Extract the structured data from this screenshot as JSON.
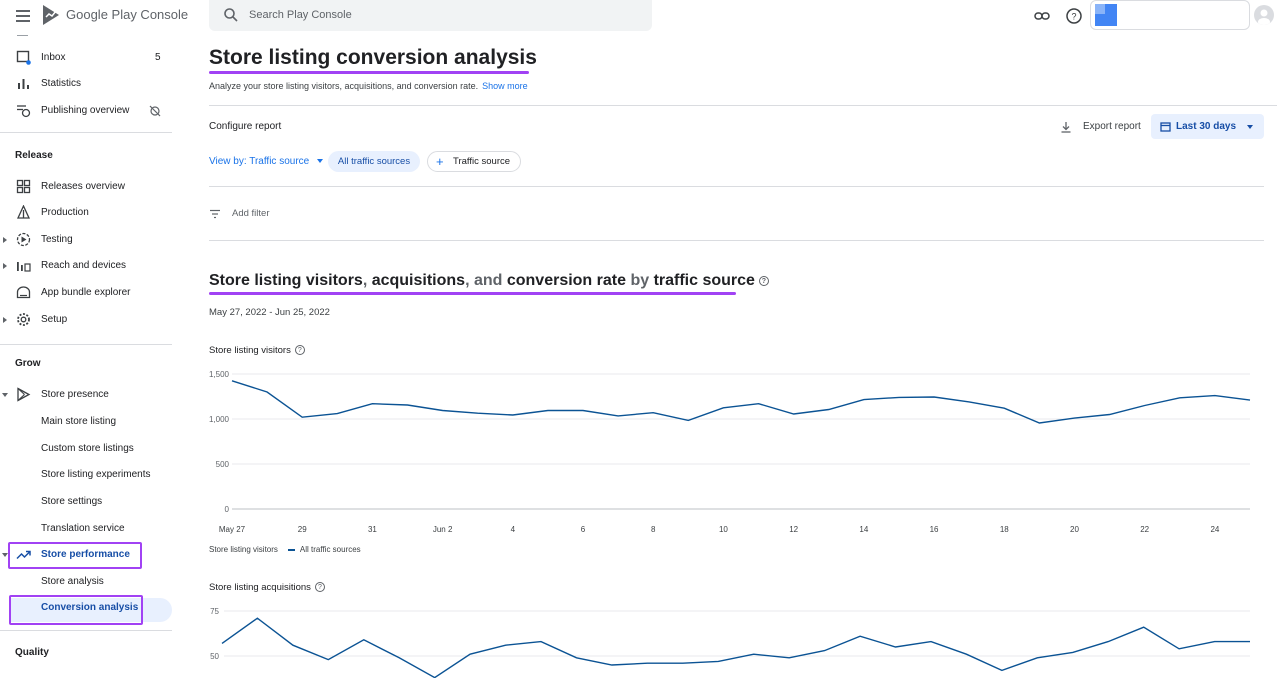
{
  "header": {
    "brand": "Google Play Console",
    "search_placeholder": "Search Play Console"
  },
  "sidebar": {
    "top_items": [
      {
        "label": "Inbox",
        "badge": "5",
        "icon": "inbox-icon"
      },
      {
        "label": "Statistics",
        "icon": "bar-chart-icon"
      },
      {
        "label": "Publishing overview",
        "icon": "publishing-icon"
      }
    ],
    "release_title": "Release",
    "release_items": [
      {
        "label": "Releases overview",
        "icon": "releases-grid-icon"
      },
      {
        "label": "Production",
        "icon": "production-icon"
      },
      {
        "label": "Testing",
        "icon": "testing-icon"
      },
      {
        "label": "Reach and devices",
        "icon": "reach-icon"
      },
      {
        "label": "App bundle explorer",
        "icon": "app-bundle-icon"
      },
      {
        "label": "Setup",
        "icon": "gear-icon"
      }
    ],
    "grow_title": "Grow",
    "store_presence": "Store presence",
    "store_presence_items": [
      "Main store listing",
      "Custom store listings",
      "Store listing experiments",
      "Store settings",
      "Translation service"
    ],
    "store_performance": "Store performance",
    "store_performance_items": [
      "Store analysis",
      "Conversion analysis"
    ],
    "quality_title": "Quality"
  },
  "main": {
    "title": "Store listing conversion analysis",
    "subtitle": "Analyze your store listing visitors, acquisitions, and conversion rate.",
    "show_more": "Show more",
    "configure_report": "Configure report",
    "export_report": "Export report",
    "date_button": "Last 30 days",
    "view_by": "View by: Traffic source",
    "chip_selected": "All traffic sources",
    "chip_add": "Traffic source",
    "add_filter": "Add filter",
    "section_heading": {
      "p1": "Store listing visitors",
      "p2": ", ",
      "p3": "acquisitions",
      "p4": ", and ",
      "p5": "conversion rate",
      "p6": " by ",
      "p7": "traffic source"
    },
    "date_range": "May 27, 2022 - Jun 25, 2022",
    "legend_label": "Store listing visitors",
    "legend_series": "All traffic sources"
  },
  "chart_data": [
    {
      "type": "line",
      "title": "Store listing visitors",
      "x": [
        "May 27",
        "May 28",
        "May 29",
        "May 30",
        "May 31",
        "Jun 1",
        "Jun 2",
        "Jun 3",
        "Jun 4",
        "Jun 5",
        "Jun 6",
        "Jun 7",
        "Jun 8",
        "Jun 9",
        "Jun 10",
        "Jun 11",
        "Jun 12",
        "Jun 13",
        "Jun 14",
        "Jun 15",
        "Jun 16",
        "Jun 17",
        "Jun 18",
        "Jun 19",
        "Jun 20",
        "Jun 21",
        "Jun 22",
        "Jun 23",
        "Jun 24",
        "Jun 25"
      ],
      "tick_labels": [
        "May 27",
        "29",
        "31",
        "Jun 2",
        "4",
        "6",
        "8",
        "10",
        "12",
        "14",
        "16",
        "18",
        "20",
        "22",
        "24"
      ],
      "series": [
        {
          "name": "All traffic sources",
          "values": [
            1425,
            1300,
            1020,
            1060,
            1170,
            1155,
            1095,
            1065,
            1045,
            1095,
            1095,
            1035,
            1070,
            985,
            1125,
            1170,
            1055,
            1105,
            1215,
            1240,
            1245,
            1190,
            1120,
            955,
            1010,
            1050,
            1150,
            1235,
            1260,
            1210
          ]
        }
      ],
      "yticks": [
        "0",
        "500",
        "1,000",
        "1,500"
      ],
      "ylim": [
        0,
        1500
      ],
      "grid": true
    },
    {
      "type": "line",
      "title": "Store listing acquisitions",
      "x": [
        "May 27",
        "May 28",
        "May 29",
        "May 30",
        "May 31",
        "Jun 1",
        "Jun 2",
        "Jun 3",
        "Jun 4",
        "Jun 5",
        "Jun 6",
        "Jun 7",
        "Jun 8",
        "Jun 9",
        "Jun 10",
        "Jun 11",
        "Jun 12",
        "Jun 13",
        "Jun 14",
        "Jun 15",
        "Jun 16",
        "Jun 17",
        "Jun 18",
        "Jun 19",
        "Jun 20",
        "Jun 21",
        "Jun 22",
        "Jun 23",
        "Jun 24",
        "Jun 25"
      ],
      "series": [
        {
          "name": "All traffic sources",
          "values": [
            57,
            71,
            56,
            48,
            59,
            49,
            38,
            51,
            56,
            58,
            49,
            45,
            46,
            46,
            47,
            51,
            49,
            53,
            61,
            55,
            58,
            51,
            42,
            49,
            52,
            58,
            66,
            54,
            58,
            58
          ]
        }
      ],
      "yticks": [
        "50",
        "75"
      ],
      "grid": true
    }
  ]
}
